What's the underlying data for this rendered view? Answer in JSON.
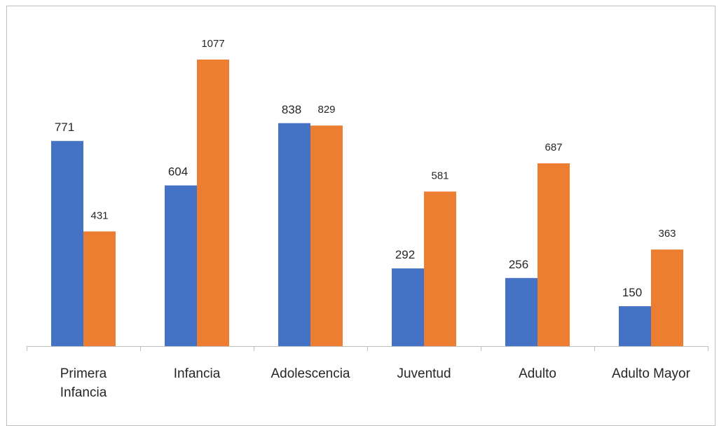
{
  "chart_data": {
    "type": "bar",
    "categories": [
      [
        "Primera",
        "Infancia"
      ],
      [
        "Infancia"
      ],
      [
        "Adolescencia"
      ],
      [
        "Juventud"
      ],
      [
        "Adulto"
      ],
      [
        "Adulto Mayor"
      ]
    ],
    "series": [
      {
        "values": [
          771,
          604,
          838,
          292,
          256,
          150
        ],
        "color": "#4472C4"
      },
      {
        "values": [
          431,
          1077,
          829,
          581,
          687,
          363
        ],
        "color": "#ED7D31"
      }
    ],
    "data_labels": [
      [
        "771",
        "604",
        "838",
        "292",
        "256",
        "150"
      ],
      [
        "431",
        "1077",
        "829",
        "581",
        "687",
        "363"
      ]
    ],
    "ylim": [
      0,
      1100
    ],
    "grid": false,
    "legend": "none",
    "axis_color": "#bfbfbf",
    "label_color": "#262626"
  }
}
